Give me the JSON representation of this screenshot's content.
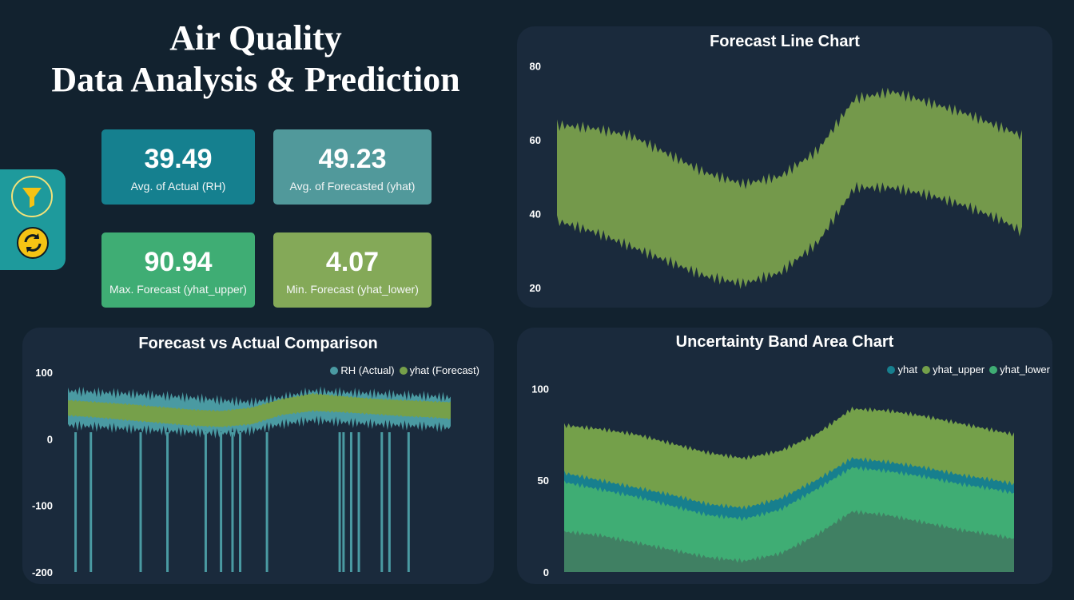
{
  "title": {
    "line1": "Air Quality",
    "line2": "Data Analysis & Prediction"
  },
  "kpis": [
    {
      "value": "39.49",
      "label": "Avg. of Actual (RH)",
      "color": "#15808f"
    },
    {
      "value": "49.23",
      "label": "Avg. of Forecasted (yhat)",
      "color": "#51999b"
    },
    {
      "value": "90.94",
      "label": "Max. Forecast (yhat_upper)",
      "color": "#3fad74"
    },
    {
      "value": "4.07",
      "label": "Min. Forecast (yhat_lower)",
      "color": "#84a958"
    }
  ],
  "side_panel": {
    "icons": [
      "funnel-icon",
      "refresh-icon"
    ]
  },
  "chart_data": [
    {
      "id": "forecast_line",
      "type": "area",
      "title": "Forecast Line Chart",
      "ylim": [
        18,
        82
      ],
      "yticks": [
        "80",
        "60",
        "40",
        "20"
      ],
      "ytick_values": [
        80,
        60,
        40,
        20
      ],
      "x": [
        0,
        0.08,
        0.16,
        0.24,
        0.32,
        0.4,
        0.48,
        0.56,
        0.64,
        0.72,
        0.8,
        0.88,
        0.96,
        1.0
      ],
      "series": [
        {
          "name": "",
          "upper": [
            64,
            63,
            61,
            56,
            51,
            48,
            50,
            57,
            71,
            73,
            70,
            67,
            63,
            61
          ],
          "lower": [
            38,
            35,
            31,
            27,
            23,
            21,
            24,
            32,
            47,
            47,
            45,
            42,
            38,
            35
          ],
          "color": "#74994b"
        }
      ],
      "grid": false
    },
    {
      "id": "forecast_vs_actual",
      "type": "line",
      "title": "Forecast vs Actual Comparison",
      "ylim": [
        -200,
        100
      ],
      "yticks": [
        "100",
        "0",
        "-100",
        "-200"
      ],
      "ytick_values": [
        100,
        0,
        -100,
        -200
      ],
      "legend": [
        {
          "name": "RH (Actual)",
          "color": "#4a9aa2"
        },
        {
          "name": "yhat (Forecast)",
          "color": "#76a04a"
        }
      ],
      "legend_position": "top-right",
      "series": [
        {
          "name": "RH (Actual)",
          "band_upper": [
            72,
            70,
            68,
            65,
            62,
            58,
            55,
            62,
            72,
            70,
            68,
            66,
            64,
            62
          ],
          "band_lower": [
            20,
            18,
            15,
            12,
            10,
            8,
            12,
            22,
            28,
            25,
            22,
            20,
            18,
            16
          ],
          "spike_x": [
            0.02,
            0.06,
            0.19,
            0.26,
            0.36,
            0.4,
            0.43,
            0.45,
            0.52,
            0.71,
            0.72,
            0.74,
            0.76,
            0.82,
            0.84,
            0.89
          ],
          "spike_min": -200
        },
        {
          "name": "yhat (Forecast)",
          "upper": [
            58,
            55,
            52,
            48,
            44,
            42,
            47,
            60,
            68,
            64,
            60,
            58,
            56,
            55
          ],
          "lower": [
            35,
            32,
            28,
            24,
            20,
            18,
            22,
            36,
            42,
            40,
            37,
            34,
            32,
            30
          ]
        }
      ],
      "x": [
        0,
        0.08,
        0.16,
        0.24,
        0.32,
        0.4,
        0.48,
        0.56,
        0.64,
        0.72,
        0.8,
        0.88,
        0.96,
        1.0
      ]
    },
    {
      "id": "uncertainty_band",
      "type": "area",
      "title": "Uncertainty Band Area Chart",
      "ylim": [
        0,
        105
      ],
      "yticks": [
        "100",
        "50",
        "0"
      ],
      "ytick_values": [
        100,
        50,
        0
      ],
      "legend": [
        {
          "name": "yhat",
          "color": "#177f8e"
        },
        {
          "name": "yhat_upper",
          "color": "#74a04a"
        },
        {
          "name": "yhat_lower",
          "color": "#3fad74"
        }
      ],
      "legend_position": "top-right",
      "x": [
        0,
        0.08,
        0.16,
        0.24,
        0.32,
        0.4,
        0.48,
        0.56,
        0.64,
        0.72,
        0.8,
        0.88,
        0.96,
        1.0
      ],
      "series": [
        {
          "name": "yhat_upper",
          "values": [
            80,
            78,
            75,
            70,
            65,
            62,
            66,
            75,
            89,
            88,
            85,
            81,
            77,
            75
          ],
          "color": "#74a04a"
        },
        {
          "name": "yhat",
          "values": [
            54,
            50,
            46,
            42,
            37,
            35,
            40,
            50,
            62,
            60,
            57,
            53,
            50,
            48
          ],
          "color": "#177f8e"
        },
        {
          "name": "yhat_lower",
          "values": [
            49,
            45,
            41,
            36,
            31,
            29,
            34,
            45,
            57,
            55,
            52,
            48,
            45,
            43
          ],
          "color": "#3fad74"
        },
        {
          "name": "",
          "values": [
            22,
            20,
            16,
            12,
            8,
            6,
            10,
            20,
            33,
            31,
            27,
            23,
            20,
            18
          ],
          "color": "#408063"
        }
      ]
    }
  ]
}
